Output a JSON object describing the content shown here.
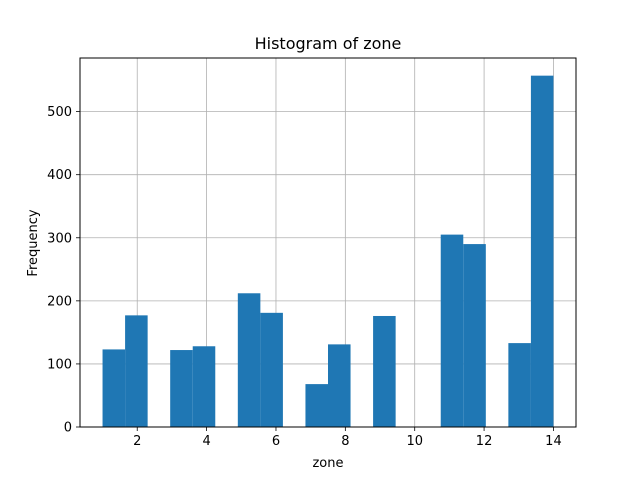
{
  "chart_data": {
    "type": "bar",
    "title": "Histogram of zone",
    "xlabel": "zone",
    "ylabel": "Frequency",
    "xlim": [
      0.35,
      14.65
    ],
    "ylim": [
      0,
      585
    ],
    "grid": true,
    "x_ticks": [
      2,
      4,
      6,
      8,
      10,
      12,
      14
    ],
    "y_ticks": [
      0,
      100,
      200,
      300,
      400,
      500
    ],
    "bin_start": 1,
    "bin_width": 0.65,
    "values": [
      123,
      177,
      0,
      122,
      128,
      0,
      212,
      181,
      0,
      68,
      131,
      0,
      176,
      0,
      0,
      305,
      290,
      0,
      133,
      557
    ],
    "colors": {
      "bar": "#1f77b4",
      "grid": "#b0b0b0",
      "axis": "#000000"
    }
  }
}
